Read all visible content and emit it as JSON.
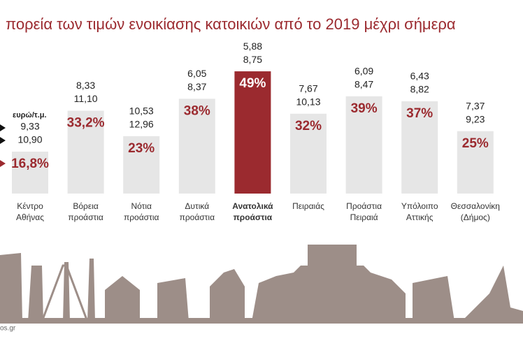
{
  "chart_data": {
    "type": "bar",
    "title": "πορεία των τιμών ενοικίασης κατοικιών από το 2019 μέχρι σήμερα",
    "unit_label": "ευρώ/τ.μ.",
    "source": "os.gr",
    "categories": [
      [
        "Κέντρο",
        "Αθήνας"
      ],
      [
        "Βόρεια",
        "προάστια"
      ],
      [
        "Νότια",
        "προάστια"
      ],
      [
        "Δυτικά",
        "προάστια"
      ],
      [
        "Ανατολικά",
        "προάστια"
      ],
      [
        "Πειραιάς"
      ],
      [
        "Προάστια",
        "Πειραιά"
      ],
      [
        "Υπόλοιπο",
        "Αττικής"
      ],
      [
        "Θεσσαλονίκη",
        "(Δήμος)"
      ]
    ],
    "values": [
      16.8,
      33.2,
      23,
      38,
      49,
      32,
      39,
      37,
      25
    ],
    "value_labels": [
      "16,8%",
      "33,2%",
      "23%",
      "38%",
      "49%",
      "32%",
      "39%",
      "37%",
      "25%"
    ],
    "price_2019": [
      "9,33",
      "8,33",
      "10,53",
      "6,05",
      "5,88",
      "7,67",
      "6,09",
      "6,43",
      "7,37"
    ],
    "price_now": [
      "10,90",
      "11,10",
      "12,96",
      "8,37",
      "8,75",
      "10,13",
      "8,47",
      "8,82",
      "9,23"
    ],
    "colors": [
      "#e6e6e6",
      "#e6e6e6",
      "#e6e6e6",
      "#e6e6e6",
      "#9b2a2f",
      "#e6e6e6",
      "#e6e6e6",
      "#e6e6e6",
      "#e6e6e6"
    ],
    "highlight": 4
  }
}
